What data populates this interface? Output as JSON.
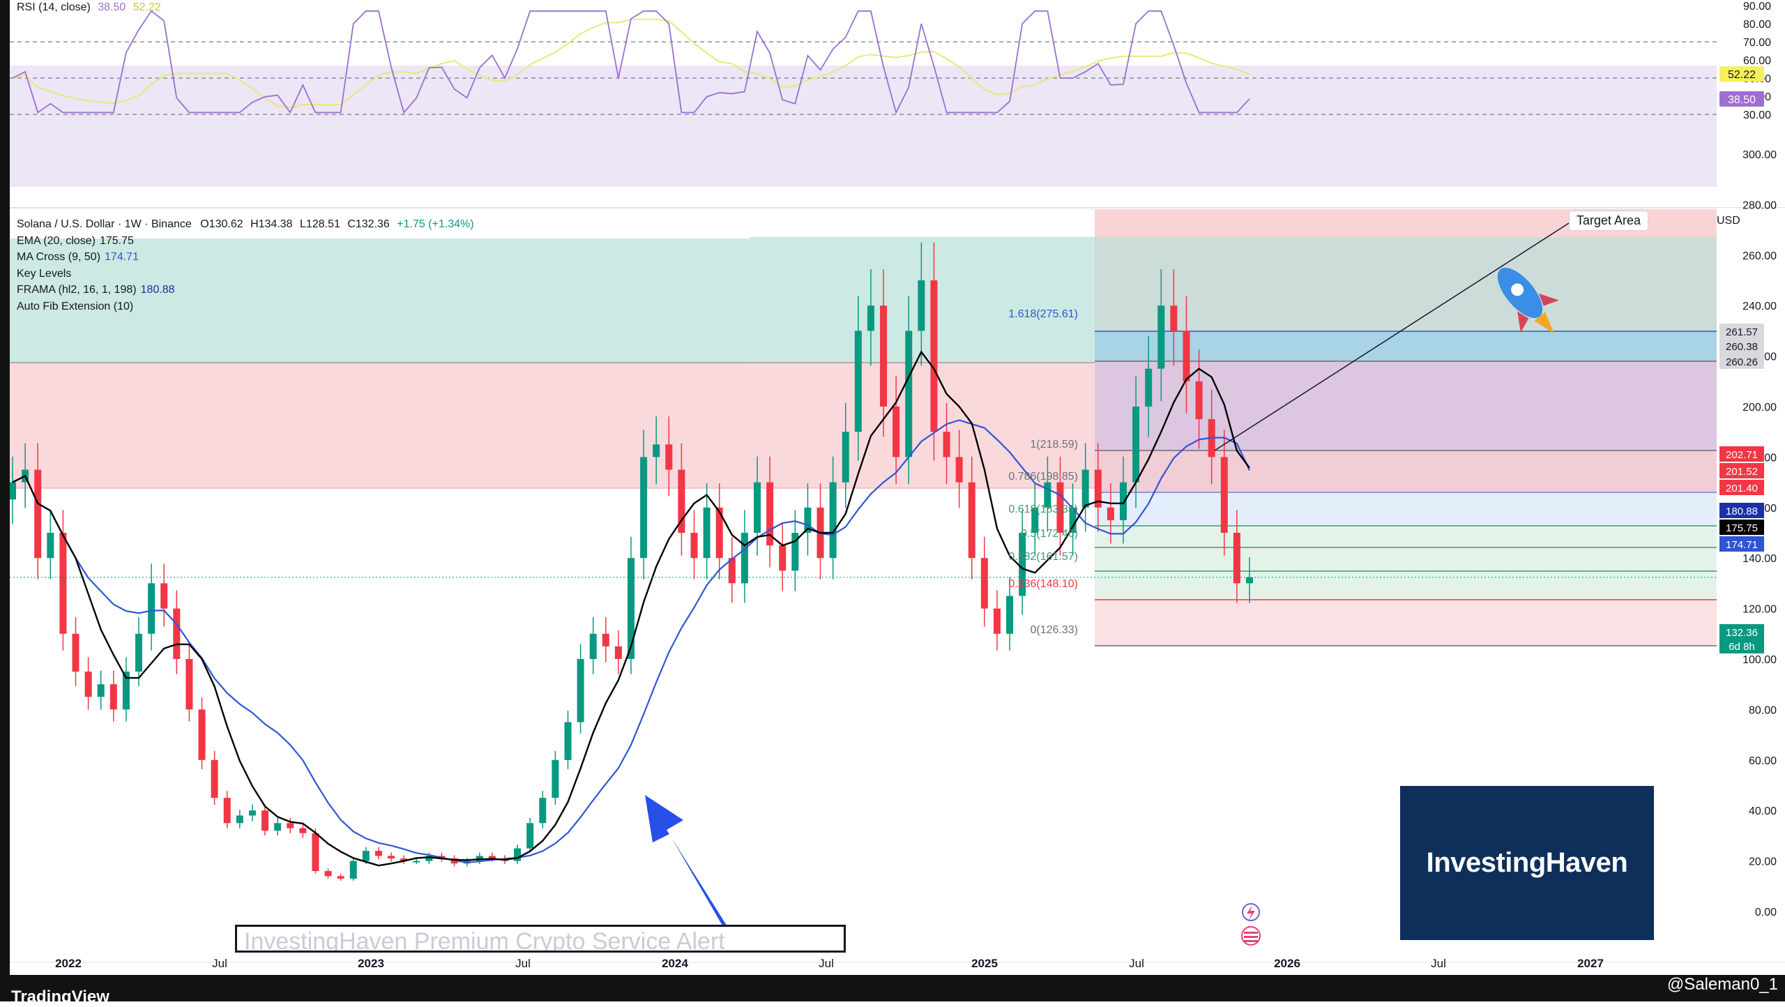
{
  "rsi": {
    "legend_title": "RSI (14, close)",
    "value_rsi": "38.50",
    "value_ma": "52.22",
    "axis_ticks": [
      "90.00",
      "80.00",
      "70.00",
      "60.00",
      "50.00",
      "40.00",
      "30.00"
    ],
    "badges": [
      "52.22",
      "38.50"
    ]
  },
  "main": {
    "symbol": "Solana / U.S. Dollar · 1W · Binance",
    "ohlc": {
      "O": "130.62",
      "H": "134.38",
      "L": "128.51",
      "C": "132.36",
      "change": "+1.75 (+1.34%)"
    },
    "indicators": [
      {
        "label": "EMA (20, close)",
        "value": "175.75"
      },
      {
        "label": "MA Cross (9, 50)",
        "value": "174.71"
      },
      {
        "label": "Key Levels",
        "value": ""
      },
      {
        "label": "FRAMA (hl2, 16, 1, 198)",
        "value": "180.88"
      },
      {
        "label": "Auto Fib Extension (10)",
        "value": ""
      }
    ],
    "currency": "USD",
    "axis_ticks": [
      "300.00",
      "280.00",
      "260.00",
      "240.00",
      "220.00",
      "200.00",
      "180.00",
      "160.00",
      "140.00",
      "120.00",
      "100.00",
      "80.00",
      "60.00",
      "40.00",
      "20.00",
      "0.00"
    ],
    "price_badges": [
      "261.57",
      "260.38",
      "260.26",
      "202.71",
      "201.52",
      "201.40",
      "180.88",
      "175.75",
      "174.71",
      "132.36",
      "6d 8h"
    ],
    "fib_labels": [
      "1.618(275.61)",
      "1(218.59)",
      "0.786(198.85)",
      "0.618(183.35)",
      "0.5(172.46)",
      "0.382(161.57)",
      "0.236(148.10)",
      "0(126.33)"
    ],
    "time_labels": [
      "2022",
      "Jul",
      "2023",
      "Jul",
      "2024",
      "Jul",
      "2025",
      "Jul",
      "2026",
      "Jul",
      "2027"
    ],
    "target_label": "Target Area",
    "premium_banner": "InvestingHaven Premium Crypto Service Alert",
    "brand_box": "InvestingHaven",
    "tv_logo": "TradingView",
    "credit": "@Saleman0_1"
  },
  "colors": {
    "up": "#089981",
    "down": "#f23645",
    "ema": "#000000",
    "ma": "#2f55d4",
    "rsi_line": "#9c6fd0",
    "rsi_ma": "#e8e87a",
    "rsi_band": "#ece6f6",
    "green_zone": "#cde9e3",
    "red_zone": "#f9d9dc",
    "brand": "#0e2f5a",
    "arrow": "#2650e8"
  },
  "chart_data": {
    "type": "candlestick",
    "price_series_weekly_close": [
      170,
      175,
      140,
      150,
      110,
      95,
      85,
      90,
      80,
      95,
      110,
      130,
      120,
      100,
      80,
      60,
      45,
      35,
      38,
      40,
      32,
      35,
      33,
      31,
      16,
      14,
      13,
      20,
      24,
      22,
      21,
      20,
      20,
      22,
      21,
      19,
      20,
      22,
      21,
      20,
      25,
      35,
      45,
      60,
      75,
      100,
      110,
      105,
      100,
      140,
      180,
      185,
      175,
      150,
      140,
      160,
      140,
      130,
      150,
      170,
      145,
      135,
      150,
      160,
      140,
      170,
      190,
      230,
      240,
      200,
      180,
      230,
      250,
      190,
      180,
      170,
      140,
      120,
      110,
      125,
      150,
      160,
      170,
      150,
      160,
      175,
      160,
      155,
      170,
      200,
      215,
      240,
      230,
      210,
      195,
      180,
      150,
      130,
      132.36
    ],
    "ema20_final": 175.75,
    "ma_cross_final": 174.71,
    "frama_final": 180.88,
    "last_close": 132.36,
    "fib_levels": [
      275.61,
      218.59,
      198.85,
      183.35,
      172.46,
      161.57,
      148.1,
      126.33
    ],
    "rsi_final": 38.5,
    "rsi_ma_final": 52.22,
    "rsi_bands": [
      70,
      50,
      30
    ],
    "ylim": [
      -10,
      330
    ],
    "rsi_ylim": [
      27,
      92
    ]
  }
}
